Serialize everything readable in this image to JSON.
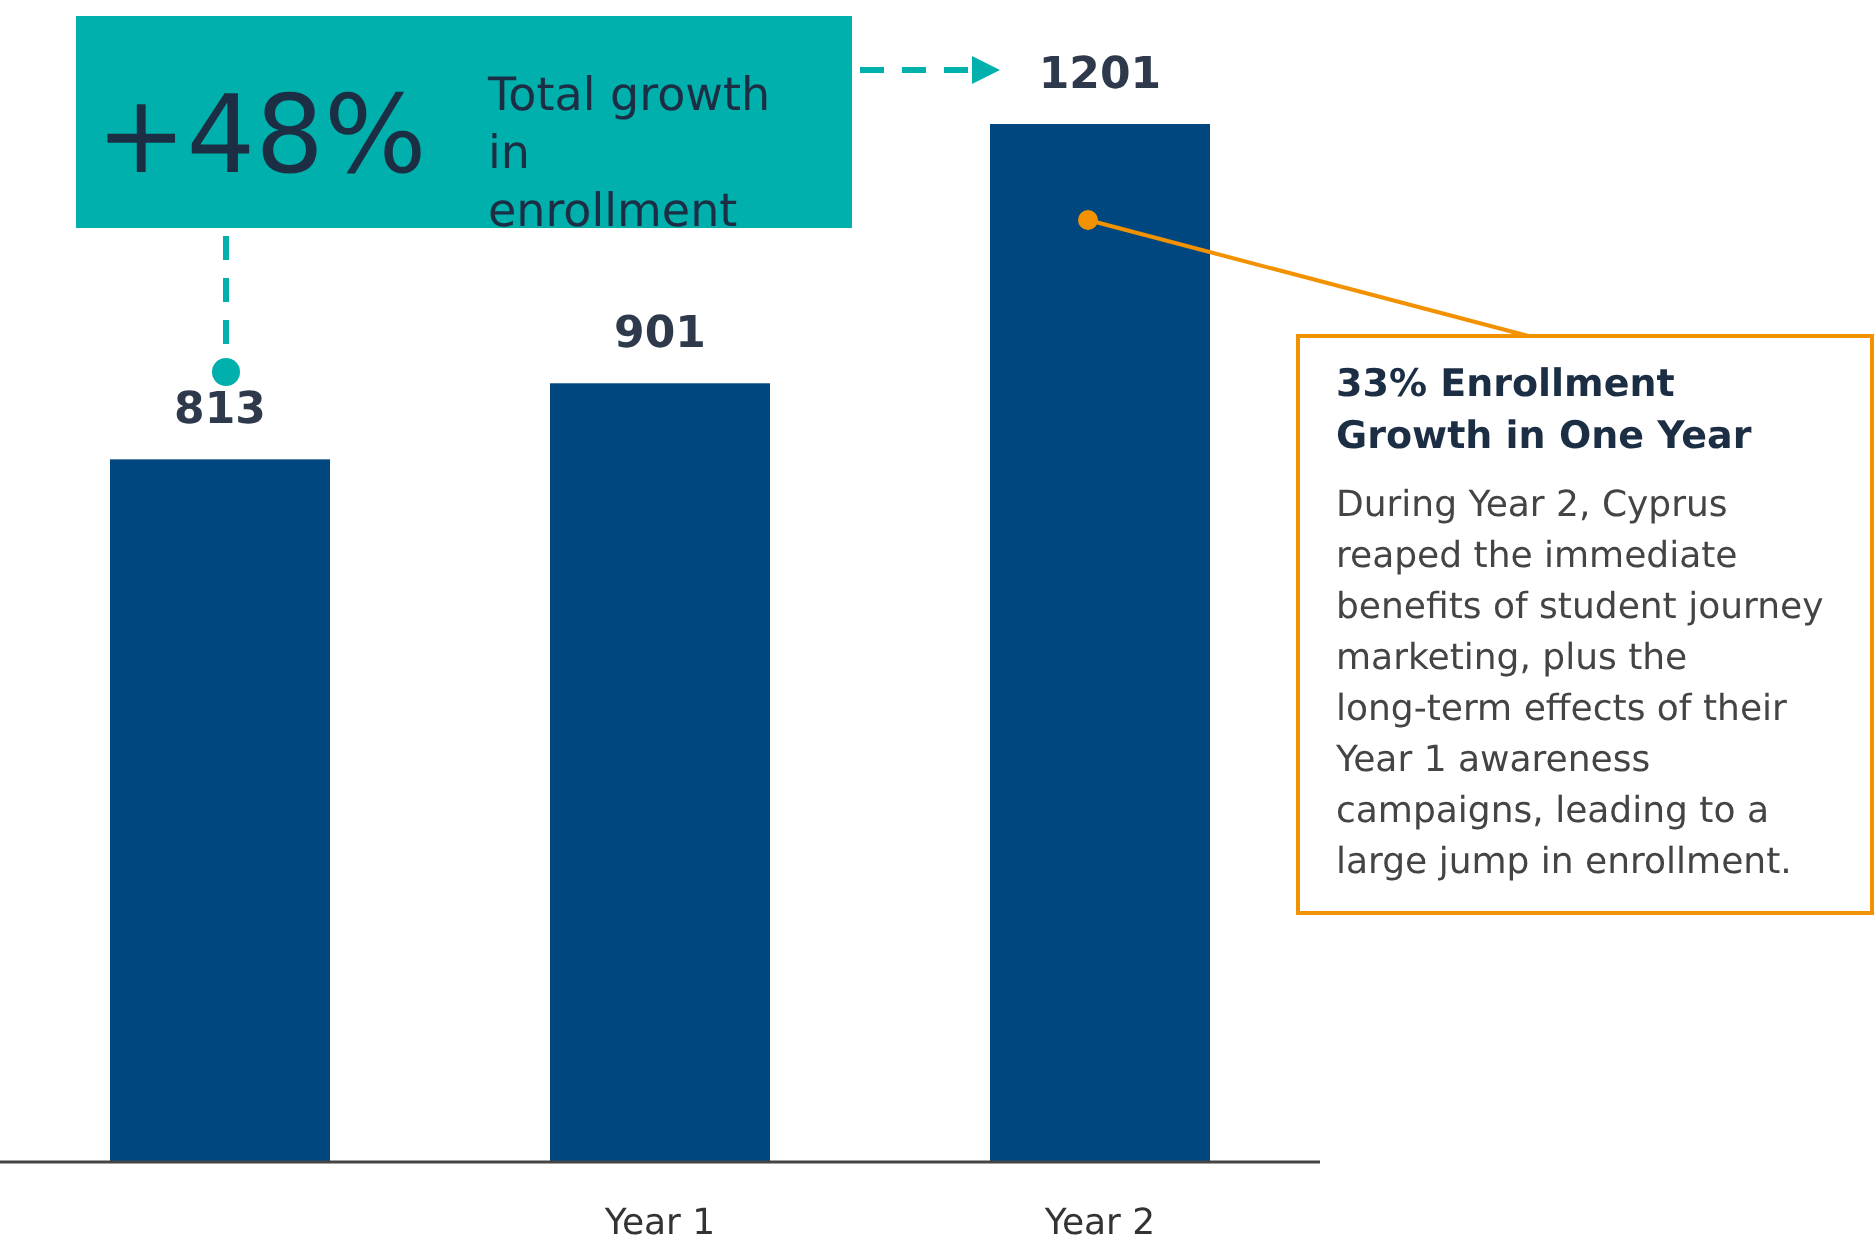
{
  "chart_data": {
    "type": "bar",
    "categories": [
      null,
      "Year 1",
      "Year 2"
    ],
    "values": [
      813,
      901,
      1201
    ],
    "color": "#00477f",
    "data_labels": true,
    "annotations": [
      "+48%",
      "Total growth in enrollment",
      "33% Enrollment Growth in One Year",
      "During Year 2, Cyprus reaped the immediate benefits of student journey marketing, plus the long-term effects of their Year 1 awareness campaigns, leading to a large jump in enrollment."
    ]
  }
}
